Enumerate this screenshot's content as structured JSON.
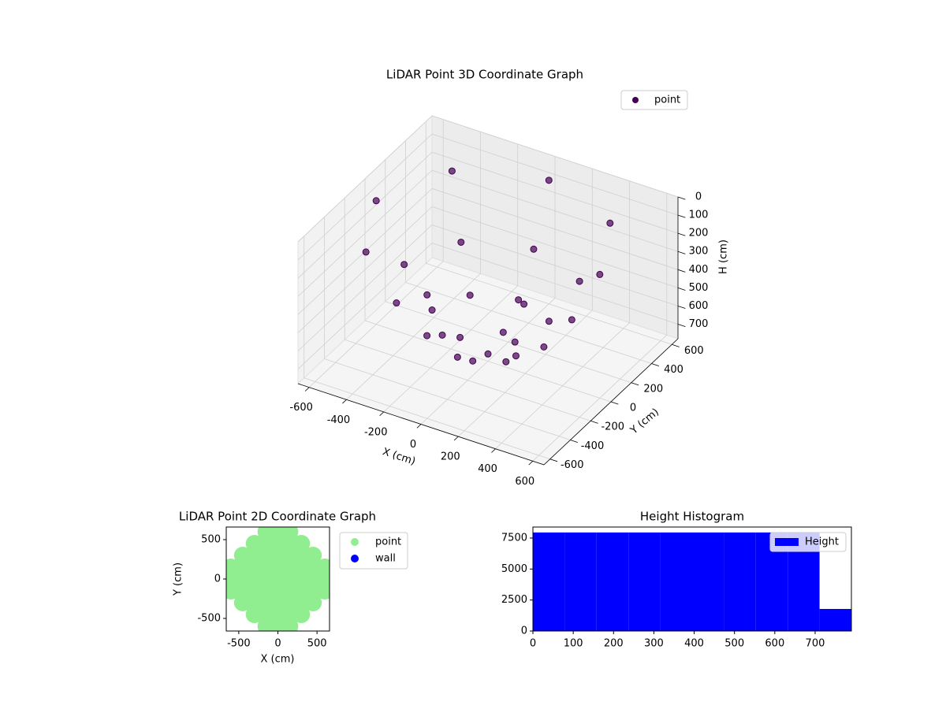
{
  "chart_data": [
    {
      "type": "scatter3d",
      "title": "LiDAR Point 3D Coordinate Graph",
      "x_label": "X (cm)",
      "y_label": "Y (cm)",
      "z_label": "H (cm)",
      "legend": "upper right",
      "xlim": [
        -660,
        660
      ],
      "ylim": [
        -660,
        660
      ],
      "zlim": [
        780,
        0
      ],
      "xticks": [
        -600,
        -400,
        -200,
        0,
        200,
        400,
        600
      ],
      "yticks": [
        -600,
        -400,
        -200,
        0,
        200,
        400,
        600
      ],
      "zticks": [
        0,
        100,
        200,
        300,
        400,
        500,
        600,
        700
      ],
      "series": [
        {
          "name": "point",
          "color": "#440154",
          "x": [
            600,
            424,
            0,
            -424,
            -600,
            -424,
            0,
            424,
            450,
            318,
            0,
            -318,
            -450,
            -318,
            0,
            318,
            300,
            212,
            0,
            -212,
            -300,
            -212,
            0,
            212,
            150,
            0,
            -150,
            0,
            0
          ],
          "y": [
            0,
            424,
            600,
            424,
            0,
            -424,
            -600,
            -424,
            0,
            318,
            450,
            318,
            0,
            -318,
            -450,
            -318,
            0,
            212,
            300,
            212,
            0,
            -212,
            -300,
            -212,
            0,
            150,
            0,
            -150,
            0
          ],
          "z": [
            100,
            100,
            100,
            100,
            100,
            100,
            100,
            100,
            400,
            400,
            400,
            400,
            400,
            400,
            400,
            400,
            600,
            600,
            600,
            600,
            600,
            600,
            600,
            600,
            700,
            700,
            700,
            700,
            740
          ]
        }
      ]
    },
    {
      "type": "scatter",
      "title": "LiDAR Point 2D Coordinate Graph",
      "x_label": "X (cm)",
      "y_label": "Y (cm)",
      "legend": "outside right",
      "xlim": [
        -660,
        660
      ],
      "ylim": [
        -660,
        660
      ],
      "xticks": [
        -500,
        0,
        500
      ],
      "yticks": [
        -500,
        0,
        500
      ],
      "series": [
        {
          "name": "point",
          "color": "#90ee90",
          "x": [
            0,
            0,
            0,
            0,
            0,
            0,
            0,
            0,
            0,
            150,
            150,
            150,
            150,
            150,
            150,
            150,
            150,
            150,
            -150,
            -150,
            -150,
            -150,
            -150,
            -150,
            -150,
            -150,
            -150,
            300,
            300,
            300,
            300,
            300,
            300,
            300,
            -300,
            -300,
            -300,
            -300,
            -300,
            -300,
            -300,
            450,
            450,
            450,
            450,
            450,
            -450,
            -450,
            -450,
            -450,
            -450,
            600,
            600,
            600,
            -600,
            -600,
            -600
          ],
          "y": [
            -600,
            -450,
            -300,
            -150,
            0,
            150,
            300,
            450,
            600,
            -600,
            -450,
            -300,
            -150,
            0,
            150,
            300,
            450,
            600,
            -600,
            -450,
            -300,
            -150,
            0,
            150,
            300,
            450,
            600,
            -450,
            -300,
            -150,
            0,
            150,
            300,
            450,
            -450,
            -300,
            -150,
            0,
            150,
            300,
            450,
            -300,
            -150,
            0,
            150,
            300,
            -300,
            -150,
            0,
            150,
            300,
            -150,
            0,
            150,
            -150,
            0,
            150
          ]
        },
        {
          "name": "wall",
          "color": "#0000ff",
          "x": [],
          "y": []
        }
      ]
    },
    {
      "type": "histogram",
      "title": "Height Histogram",
      "legend": "upper right",
      "series": [
        {
          "name": "Height",
          "color": "#0000ff",
          "bins": [
            0,
            79,
            158,
            237,
            316,
            395,
            474,
            553,
            632,
            711,
            790
          ],
          "values": [
            7950,
            7950,
            7950,
            7950,
            7950,
            7950,
            7950,
            7950,
            7950,
            1780
          ]
        }
      ],
      "xlim": [
        0,
        790
      ],
      "ylim": [
        0,
        8390
      ],
      "xticks": [
        0,
        100,
        200,
        300,
        400,
        500,
        600,
        700
      ],
      "yticks": [
        0,
        2500,
        5000,
        7500
      ]
    }
  ]
}
